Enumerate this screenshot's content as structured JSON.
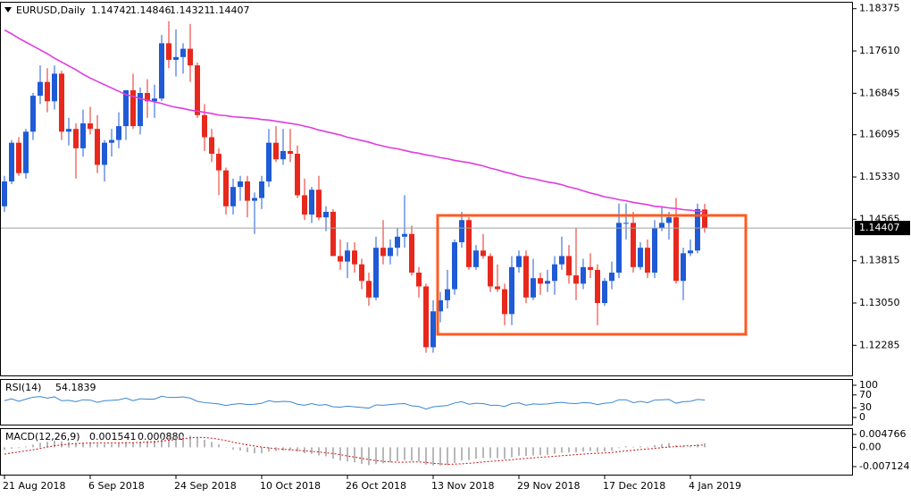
{
  "chart_data": [
    {
      "type": "candlestick",
      "title": "EURUSD,Daily",
      "categories": [
        "21 Aug 2018",
        null,
        null,
        null,
        null,
        null,
        null,
        null,
        null,
        null,
        null,
        null,
        "6 Sep 2018",
        null,
        null,
        null,
        null,
        null,
        null,
        null,
        null,
        null,
        null,
        null,
        "24 Sep 2018",
        null,
        null,
        null,
        null,
        null,
        null,
        null,
        null,
        null,
        null,
        null,
        "10 Oct 2018",
        null,
        null,
        null,
        null,
        null,
        null,
        null,
        null,
        null,
        null,
        null,
        "26 Oct 2018",
        null,
        null,
        null,
        null,
        null,
        null,
        null,
        null,
        null,
        null,
        null,
        "13 Nov 2018",
        null,
        null,
        null,
        null,
        null,
        null,
        null,
        null,
        null,
        null,
        null,
        "29 Nov 2018",
        null,
        null,
        null,
        null,
        null,
        null,
        null,
        null,
        null,
        null,
        null,
        "17 Dec 2018",
        null,
        null,
        null,
        null,
        null,
        null,
        null,
        null,
        null,
        null,
        null,
        "4 Jan 2019",
        null,
        null
      ],
      "open": [
        1.148,
        1.1525,
        1.1595,
        1.154,
        1.1615,
        1.168,
        1.1705,
        1.167,
        1.172,
        1.1615,
        1.162,
        1.1585,
        1.163,
        1.162,
        1.1555,
        1.1595,
        1.16,
        1.1625,
        1.169,
        1.1625,
        1.1685,
        1.167,
        1.1675,
        1.1775,
        1.1745,
        1.175,
        1.1765,
        1.1735,
        1.1645,
        1.1605,
        1.1575,
        1.1545,
        1.148,
        1.1515,
        1.1525,
        1.149,
        1.1495,
        1.1525,
        1.1595,
        1.1565,
        1.158,
        1.1575,
        1.15,
        1.1465,
        1.151,
        1.146,
        1.147,
        1.139,
        1.138,
        1.14,
        1.1375,
        1.1345,
        1.1315,
        1.1405,
        1.139,
        1.1405,
        1.1425,
        1.143,
        1.136,
        1.1335,
        1.1225,
        1.129,
        1.131,
        1.133,
        1.1415,
        1.1455,
        1.137,
        1.14,
        1.139,
        1.1335,
        1.133,
        1.1285,
        1.137,
        1.139,
        1.1315,
        1.135,
        1.134,
        1.1345,
        1.1375,
        1.139,
        1.1355,
        1.134,
        1.137,
        1.1365,
        1.1305,
        1.1345,
        1.136,
        1.145,
        1.145,
        1.137,
        1.1405,
        1.136,
        1.144,
        1.145,
        1.146,
        1.1345,
        1.1395,
        1.14,
        1.14742
      ],
      "high": [
        1.1535,
        1.16,
        1.1605,
        1.162,
        1.1685,
        1.1735,
        1.173,
        1.1735,
        1.1725,
        1.164,
        1.163,
        1.1655,
        1.166,
        1.1645,
        1.16,
        1.162,
        1.165,
        1.169,
        1.172,
        1.1695,
        1.171,
        1.17,
        1.179,
        1.1815,
        1.18,
        1.1775,
        1.181,
        1.174,
        1.1665,
        1.162,
        1.1585,
        1.155,
        1.153,
        1.1535,
        1.1535,
        1.1505,
        1.1535,
        1.162,
        1.1625,
        1.162,
        1.162,
        1.159,
        1.153,
        1.1515,
        1.1535,
        1.148,
        1.1475,
        1.142,
        1.1415,
        1.1415,
        1.1385,
        1.136,
        1.1425,
        1.1455,
        1.142,
        1.144,
        1.15,
        1.1445,
        1.137,
        1.134,
        1.131,
        1.1325,
        1.1365,
        1.142,
        1.147,
        1.146,
        1.141,
        1.143,
        1.1395,
        1.1375,
        1.134,
        1.139,
        1.14,
        1.14,
        1.1385,
        1.136,
        1.1365,
        1.139,
        1.1425,
        1.141,
        1.144,
        1.1385,
        1.1395,
        1.1375,
        1.135,
        1.138,
        1.1485,
        1.1485,
        1.147,
        1.1415,
        1.142,
        1.1455,
        1.148,
        1.147,
        1.1495,
        1.1405,
        1.142,
        1.1485,
        1.14846
      ],
      "low": [
        1.147,
        1.152,
        1.1535,
        1.153,
        1.16,
        1.1665,
        1.165,
        1.1655,
        1.16,
        1.159,
        1.153,
        1.157,
        1.161,
        1.154,
        1.1525,
        1.157,
        1.1585,
        1.16,
        1.162,
        1.161,
        1.164,
        1.164,
        1.167,
        1.173,
        1.1715,
        1.172,
        1.1705,
        1.164,
        1.158,
        1.156,
        1.15,
        1.1465,
        1.1465,
        1.149,
        1.146,
        1.143,
        1.1475,
        1.1515,
        1.156,
        1.1555,
        1.156,
        1.1495,
        1.1455,
        1.145,
        1.1455,
        1.1435,
        1.139,
        1.1365,
        1.135,
        1.136,
        1.133,
        1.13,
        1.131,
        1.1375,
        1.1375,
        1.139,
        1.1405,
        1.1355,
        1.1315,
        1.1215,
        1.1215,
        1.127,
        1.1295,
        1.132,
        1.1405,
        1.1365,
        1.1365,
        1.1385,
        1.1325,
        1.1325,
        1.1265,
        1.1265,
        1.136,
        1.1305,
        1.131,
        1.132,
        1.1325,
        1.132,
        1.1365,
        1.134,
        1.131,
        1.133,
        1.135,
        1.1265,
        1.13,
        1.133,
        1.135,
        1.142,
        1.136,
        1.1365,
        1.135,
        1.135,
        1.1435,
        1.142,
        1.134,
        1.131,
        1.139,
        1.1395,
        1.14321
      ],
      "close": [
        1.1525,
        1.1595,
        1.154,
        1.1615,
        1.168,
        1.1705,
        1.167,
        1.172,
        1.1615,
        1.162,
        1.1585,
        1.163,
        1.162,
        1.1555,
        1.1595,
        1.16,
        1.1625,
        1.169,
        1.1625,
        1.1685,
        1.167,
        1.1675,
        1.1775,
        1.1745,
        1.175,
        1.1765,
        1.1735,
        1.1645,
        1.1605,
        1.1575,
        1.1545,
        1.148,
        1.1515,
        1.1525,
        1.149,
        1.1495,
        1.1525,
        1.1595,
        1.1565,
        1.158,
        1.1575,
        1.15,
        1.1465,
        1.151,
        1.146,
        1.147,
        1.139,
        1.138,
        1.14,
        1.1375,
        1.1345,
        1.1315,
        1.1405,
        1.139,
        1.1405,
        1.1425,
        1.143,
        1.136,
        1.1335,
        1.1225,
        1.129,
        1.131,
        1.133,
        1.1415,
        1.1455,
        1.137,
        1.14,
        1.139,
        1.1335,
        1.133,
        1.1285,
        1.137,
        1.139,
        1.1315,
        1.135,
        1.134,
        1.1345,
        1.1375,
        1.139,
        1.1355,
        1.134,
        1.137,
        1.1365,
        1.1305,
        1.1345,
        1.136,
        1.145,
        1.145,
        1.137,
        1.1405,
        1.136,
        1.144,
        1.145,
        1.146,
        1.1345,
        1.1395,
        1.14,
        1.1475,
        1.14407
      ],
      "up_color": "#1f5bd6",
      "down_color": "#e8281c",
      "overlay": {
        "type": "line",
        "color": "#e03ce0",
        "values": [
          1.1799,
          1.1792,
          1.1784,
          1.1777,
          1.177,
          1.1763,
          1.1756,
          1.1748,
          1.1741,
          1.1734,
          1.1727,
          1.1719,
          1.1712,
          1.1706,
          1.17,
          1.1694,
          1.1688,
          1.1682,
          1.1679,
          1.1675,
          1.1672,
          1.1669,
          1.1666,
          1.1662,
          1.1659,
          1.1657,
          1.1654,
          1.1652,
          1.165,
          1.1648,
          1.1645,
          1.1644,
          1.1642,
          1.1641,
          1.164,
          1.1639,
          1.1637,
          1.1636,
          1.1634,
          1.1632,
          1.163,
          1.1628,
          1.1625,
          1.1622,
          1.1618,
          1.1615,
          1.1612,
          1.1609,
          1.1605,
          1.1602,
          1.1599,
          1.1596,
          1.1592,
          1.1589,
          1.1586,
          1.1584,
          1.1581,
          1.1578,
          1.1576,
          1.1573,
          1.1571,
          1.1568,
          1.1566,
          1.1563,
          1.1561,
          1.1559,
          1.1556,
          1.1553,
          1.1549,
          1.1546,
          1.1542,
          1.1539,
          1.1535,
          1.1532,
          1.153,
          1.1527,
          1.1524,
          1.1522,
          1.1519,
          1.1515,
          1.1512,
          1.1508,
          1.1504,
          1.1501,
          1.1497,
          1.1495,
          1.1492,
          1.149,
          1.1487,
          1.1485,
          1.1483,
          1.148,
          1.1479,
          1.1477,
          1.1476,
          1.1474,
          1.1473,
          1.1471,
          1.147
        ]
      },
      "ylim": [
        1.1174,
        1.185
      ],
      "yticks": [
        1.18375,
        {
          "value": 1.1761,
          "label": "1.17610"
        },
        1.16845,
        1.16095,
        {
          "value": 1.1533,
          "label": "1.15330"
        },
        1.14565,
        1.13815,
        {
          "value": 1.1305,
          "label": "1.13050"
        },
        1.12285
      ]
    },
    {
      "type": "line",
      "title": "RSI(14)",
      "color": "#3a86d1",
      "values": [
        52,
        58,
        50,
        57,
        63,
        65,
        60,
        64,
        52,
        53,
        49,
        55,
        54,
        47,
        52,
        53,
        55,
        60,
        52,
        58,
        57,
        57,
        66,
        62,
        62,
        64,
        60,
        50,
        46,
        44,
        42,
        37,
        41,
        43,
        40,
        41,
        44,
        52,
        48,
        50,
        49,
        41,
        38,
        43,
        38,
        40,
        33,
        32,
        35,
        33,
        31,
        29,
        39,
        38,
        40,
        42,
        43,
        36,
        34,
        26,
        33,
        35,
        37,
        45,
        49,
        41,
        44,
        43,
        38,
        38,
        34,
        43,
        45,
        38,
        42,
        41,
        42,
        45,
        47,
        44,
        43,
        46,
        45,
        40,
        44,
        46,
        55,
        55,
        46,
        50,
        46,
        54,
        55,
        56,
        44,
        49,
        50,
        56,
        54.1839
      ],
      "ylim": [
        0,
        100
      ],
      "yticks": [
        100,
        70,
        30,
        0
      ]
    },
    {
      "type": "macd",
      "title": "MACD(12,26,9)",
      "histogram": {
        "color": "#b8b8b8",
        "values": [
          -0.001,
          -0.0005,
          -0.0003,
          0.0003,
          0.001,
          0.0017,
          0.002,
          0.0025,
          0.0022,
          0.002,
          0.0016,
          0.0017,
          0.0017,
          0.0012,
          0.0012,
          0.0012,
          0.0014,
          0.0019,
          0.0017,
          0.0021,
          0.0023,
          0.0025,
          0.0033,
          0.0036,
          0.0039,
          0.0042,
          0.0043,
          0.0036,
          0.0028,
          0.002,
          0.0011,
          -0.0001,
          -0.0008,
          -0.0012,
          -0.0018,
          -0.0022,
          -0.0022,
          -0.0016,
          -0.0014,
          -0.0012,
          -0.0011,
          -0.0016,
          -0.0022,
          -0.0024,
          -0.003,
          -0.0033,
          -0.0042,
          -0.0049,
          -0.0052,
          -0.0056,
          -0.0061,
          -0.0066,
          -0.0062,
          -0.0059,
          -0.0055,
          -0.0051,
          -0.0047,
          -0.0049,
          -0.0052,
          -0.0064,
          -0.0067,
          -0.0067,
          -0.0065,
          -0.0058,
          -0.0049,
          -0.0047,
          -0.0042,
          -0.0039,
          -0.004,
          -0.004,
          -0.0043,
          -0.0037,
          -0.0031,
          -0.0032,
          -0.003,
          -0.0029,
          -0.0028,
          -0.0024,
          -0.002,
          -0.0019,
          -0.0019,
          -0.0016,
          -0.0014,
          -0.0017,
          -0.0015,
          -0.0012,
          -0.0003,
          0.0004,
          0.0002,
          0.0004,
          0.0002,
          0.0008,
          0.0012,
          0.0016,
          0.0007,
          0.0005,
          0.0004,
          0.0011,
          0.001541
        ]
      },
      "signal": {
        "color": "#cc1010",
        "values": [
          -0.0025,
          -0.0021,
          -0.0017,
          -0.0013,
          -0.0009,
          -0.0004,
          0.0001,
          0.0006,
          0.0009,
          0.0012,
          0.0014,
          0.0015,
          0.0016,
          0.0016,
          0.0016,
          0.0016,
          0.0016,
          0.0017,
          0.0017,
          0.0018,
          0.0019,
          0.002,
          0.0023,
          0.0026,
          0.0029,
          0.0032,
          0.0035,
          0.0037,
          0.0036,
          0.0034,
          0.003,
          0.0025,
          0.0019,
          0.0014,
          0.0009,
          0.0005,
          0.0001,
          -0.0002,
          -0.0005,
          -0.0007,
          -0.0009,
          -0.0011,
          -0.0013,
          -0.0015,
          -0.0017,
          -0.002,
          -0.0023,
          -0.0027,
          -0.0032,
          -0.0036,
          -0.0041,
          -0.0045,
          -0.0049,
          -0.0052,
          -0.0054,
          -0.0055,
          -0.0055,
          -0.0054,
          -0.0054,
          -0.0056,
          -0.0059,
          -0.0061,
          -0.0063,
          -0.0062,
          -0.0061,
          -0.0059,
          -0.0057,
          -0.0054,
          -0.0052,
          -0.005,
          -0.0048,
          -0.0046,
          -0.0043,
          -0.0041,
          -0.0039,
          -0.0037,
          -0.0035,
          -0.0033,
          -0.0031,
          -0.0029,
          -0.0027,
          -0.0025,
          -0.0023,
          -0.0022,
          -0.0021,
          -0.0019,
          -0.0016,
          -0.0013,
          -0.0011,
          -0.0008,
          -0.0006,
          -0.0004,
          -0.0001,
          0.0001,
          0.0003,
          0.0005,
          0.0006,
          0.0007,
          0.00088
        ],
        "value_labels": [
          null,
          null,
          null,
          null,
          null,
          null,
          null,
          null,
          null,
          null,
          null,
          null,
          null,
          null,
          null,
          null,
          null,
          null,
          null,
          null,
          null,
          null,
          null,
          null,
          null,
          null,
          null,
          null,
          null,
          null,
          null,
          null,
          null,
          null,
          null,
          null,
          null,
          null,
          null,
          null,
          null,
          null,
          null,
          null,
          null,
          null,
          null,
          null,
          null,
          null,
          null,
          null,
          null,
          null,
          null,
          null,
          null,
          null,
          null,
          null,
          null,
          null,
          null,
          null,
          null,
          null,
          null,
          null,
          null,
          null,
          null,
          null,
          null,
          null,
          null,
          null,
          null,
          null,
          null,
          null,
          null,
          null,
          null,
          null,
          null,
          null,
          null,
          null,
          null,
          null,
          null,
          null,
          null,
          null,
          null,
          null,
          null,
          null,
          "0.000880"
        ]
      },
      "ylim": [
        -0.007124,
        0.004766
      ],
      "yticks": [
        0.004766,
        {
          "value": 0,
          "label": "0.00"
        },
        -0.007124
      ]
    }
  ]
}
